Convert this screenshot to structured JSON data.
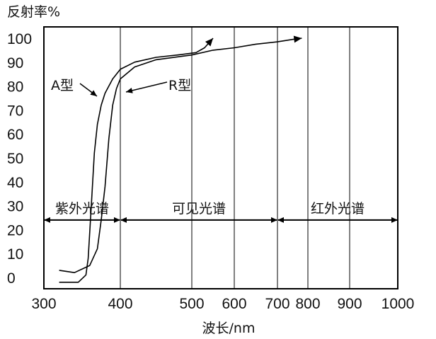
{
  "chart_data": {
    "type": "line",
    "ylabel": "反射率%",
    "xlabel": "波长/nm",
    "x_ticks": [
      "300",
      "400",
      "500",
      "600",
      "700",
      "800",
      "900",
      "1000"
    ],
    "y_ticks": [
      "0",
      "10",
      "20",
      "30",
      "40",
      "50",
      "60",
      "70",
      "80",
      "90",
      "100"
    ],
    "xlim": [
      300,
      1000
    ],
    "ylim": [
      -5,
      108
    ],
    "grid": "vertical lines at x tick values",
    "series": [
      {
        "name": "A型",
        "x": [
          320,
          345,
          355,
          358,
          362,
          366,
          370,
          375,
          380,
          390,
          400,
          420,
          450,
          480,
          510,
          530,
          550
        ],
        "y": [
          -2,
          -2,
          1,
          8,
          30,
          52,
          64,
          72,
          77,
          83,
          87,
          90,
          92,
          93,
          94,
          96,
          100
        ]
      },
      {
        "name": "R型",
        "x": [
          320,
          340,
          360,
          370,
          375,
          380,
          385,
          390,
          395,
          400,
          420,
          450,
          500,
          550,
          600,
          650,
          700,
          750,
          780
        ],
        "y": [
          3,
          2,
          5,
          12,
          24,
          38,
          58,
          72,
          79,
          83,
          88,
          91,
          93,
          95,
          96,
          97.5,
          98.5,
          99.5,
          100
        ]
      }
    ],
    "annotations": [
      {
        "text": "A型",
        "points_to": "A型"
      },
      {
        "text": "R型",
        "points_to": "R型"
      }
    ],
    "regions": [
      {
        "label": "紫外光谱",
        "x_start": 300,
        "x_end": 400
      },
      {
        "label": "可见光谱",
        "x_start": 400,
        "x_end": 700
      },
      {
        "label": "红外光谱",
        "x_start": 700,
        "x_end": 1000
      }
    ],
    "region_arrow_y": 24
  }
}
